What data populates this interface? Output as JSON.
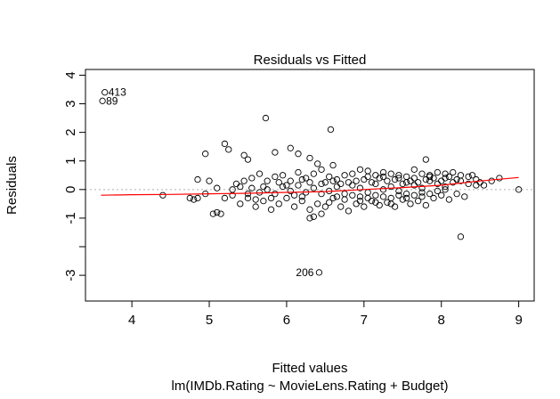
{
  "chart_data": {
    "type": "scatter",
    "title": "Residuals vs Fitted",
    "xlabel": "Fitted values",
    "ylabel": "Residuals",
    "subtitle": "lm(IMDb.Rating ~ MovieLens.Rating + Budget)",
    "xlim": [
      3.4,
      9.2
    ],
    "ylim": [
      -3.9,
      4.2
    ],
    "x_ticks": [
      4,
      5,
      6,
      7,
      8,
      9
    ],
    "y_ticks": [
      -3,
      -2,
      -1,
      0,
      1,
      2,
      3,
      4
    ],
    "y_tick_labels": [
      "-3",
      "",
      "-1",
      "0",
      "1",
      "2",
      "3",
      "4"
    ],
    "reference_line": {
      "y": 0,
      "style": "dotted",
      "color": "#b0b0b0"
    },
    "annotations": [
      {
        "label": "413",
        "x": 3.65,
        "y": 3.4
      },
      {
        "label": "89",
        "x": 3.62,
        "y": 3.1
      },
      {
        "label": "206",
        "x": 6.42,
        "y": -2.9
      }
    ],
    "smoother": {
      "color": "#ff0000",
      "x": [
        3.6,
        4.0,
        4.5,
        5.0,
        5.5,
        6.0,
        6.5,
        7.0,
        7.5,
        8.0,
        8.5,
        9.0
      ],
      "y": [
        -0.2,
        -0.18,
        -0.17,
        -0.15,
        -0.13,
        -0.1,
        -0.07,
        0.0,
        0.07,
        0.15,
        0.3,
        0.42
      ]
    },
    "series": [
      {
        "points": [
          [
            3.65,
            3.4
          ],
          [
            3.62,
            3.1
          ],
          [
            6.42,
            -2.9
          ],
          [
            8.25,
            -1.65
          ],
          [
            5.73,
            2.5
          ],
          [
            6.57,
            2.1
          ],
          [
            5.2,
            1.6
          ],
          [
            5.25,
            1.4
          ],
          [
            6.05,
            1.45
          ],
          [
            5.45,
            1.2
          ],
          [
            5.5,
            1.05
          ],
          [
            4.95,
            1.25
          ],
          [
            5.85,
            1.3
          ],
          [
            6.15,
            1.25
          ],
          [
            6.3,
            1.1
          ],
          [
            6.4,
            0.9
          ],
          [
            6.6,
            0.85
          ],
          [
            7.8,
            1.05
          ],
          [
            5.05,
            -0.85
          ],
          [
            5.15,
            -0.85
          ],
          [
            5.1,
            -0.8
          ],
          [
            6.3,
            -1.0
          ],
          [
            6.35,
            -0.95
          ],
          [
            6.45,
            -0.85
          ],
          [
            4.4,
            -0.2
          ],
          [
            4.75,
            -0.3
          ],
          [
            4.8,
            -0.35
          ],
          [
            4.85,
            -0.3
          ],
          [
            9.0,
            0.0
          ],
          [
            8.75,
            0.4
          ],
          [
            8.65,
            0.3
          ],
          [
            8.4,
            0.5
          ],
          [
            8.45,
            0.15
          ],
          [
            4.85,
            0.35
          ],
          [
            5.0,
            0.3
          ],
          [
            5.35,
            0.2
          ],
          [
            5.45,
            0.3
          ],
          [
            5.55,
            0.4
          ],
          [
            5.65,
            0.55
          ],
          [
            5.75,
            0.3
          ],
          [
            5.85,
            0.45
          ],
          [
            5.95,
            0.5
          ],
          [
            6.05,
            0.3
          ],
          [
            6.15,
            0.6
          ],
          [
            6.25,
            0.4
          ],
          [
            6.35,
            0.55
          ],
          [
            6.45,
            0.7
          ],
          [
            6.55,
            0.45
          ],
          [
            6.65,
            0.35
          ],
          [
            6.75,
            0.5
          ],
          [
            6.85,
            0.55
          ],
          [
            6.95,
            0.7
          ],
          [
            7.05,
            0.65
          ],
          [
            7.15,
            0.5
          ],
          [
            7.25,
            0.6
          ],
          [
            7.35,
            0.55
          ],
          [
            7.45,
            0.5
          ],
          [
            7.55,
            0.45
          ],
          [
            7.65,
            0.7
          ],
          [
            7.75,
            0.55
          ],
          [
            7.85,
            0.5
          ],
          [
            7.95,
            0.6
          ],
          [
            8.05,
            0.55
          ],
          [
            8.15,
            0.6
          ],
          [
            8.25,
            0.5
          ],
          [
            8.35,
            0.45
          ],
          [
            5.3,
            -0.2
          ],
          [
            5.4,
            -0.5
          ],
          [
            5.5,
            -0.3
          ],
          [
            5.6,
            -0.6
          ],
          [
            5.7,
            -0.4
          ],
          [
            5.8,
            -0.7
          ],
          [
            5.9,
            -0.5
          ],
          [
            6.0,
            -0.3
          ],
          [
            6.1,
            -0.6
          ],
          [
            6.2,
            -0.4
          ],
          [
            6.3,
            -0.7
          ],
          [
            6.4,
            -0.5
          ],
          [
            6.5,
            -0.6
          ],
          [
            6.6,
            -0.3
          ],
          [
            6.7,
            -0.6
          ],
          [
            6.8,
            -0.75
          ],
          [
            6.9,
            -0.5
          ],
          [
            7.0,
            -0.6
          ],
          [
            7.1,
            -0.4
          ],
          [
            7.2,
            -0.55
          ],
          [
            7.3,
            -0.45
          ],
          [
            7.4,
            -0.6
          ],
          [
            7.5,
            -0.35
          ],
          [
            7.6,
            -0.5
          ],
          [
            7.7,
            -0.4
          ],
          [
            7.8,
            -0.55
          ],
          [
            7.9,
            -0.3
          ],
          [
            8.0,
            -0.2
          ],
          [
            8.1,
            -0.35
          ],
          [
            8.2,
            -0.15
          ],
          [
            8.3,
            -0.25
          ],
          [
            5.55,
            0.05
          ],
          [
            5.65,
            -0.1
          ],
          [
            5.75,
            0.0
          ],
          [
            5.85,
            -0.15
          ],
          [
            5.95,
            0.1
          ],
          [
            6.05,
            -0.05
          ],
          [
            6.15,
            0.15
          ],
          [
            6.25,
            -0.1
          ],
          [
            6.35,
            0.05
          ],
          [
            6.45,
            0.2
          ],
          [
            6.55,
            -0.05
          ],
          [
            6.65,
            0.1
          ],
          [
            6.75,
            -0.15
          ],
          [
            6.85,
            0.15
          ],
          [
            6.95,
            0.05
          ],
          [
            7.05,
            -0.1
          ],
          [
            7.15,
            0.2
          ],
          [
            7.25,
            0.0
          ],
          [
            7.35,
            0.1
          ],
          [
            7.45,
            -0.05
          ],
          [
            7.55,
            0.25
          ],
          [
            7.65,
            0.15
          ],
          [
            7.75,
            0.05
          ],
          [
            7.85,
            0.3
          ],
          [
            7.95,
            0.2
          ],
          [
            8.05,
            0.1
          ],
          [
            8.15,
            0.25
          ],
          [
            8.25,
            0.3
          ],
          [
            8.35,
            0.2
          ],
          [
            8.45,
            0.35
          ],
          [
            6.9,
            0.3
          ],
          [
            7.0,
            0.35
          ],
          [
            7.1,
            0.25
          ],
          [
            7.2,
            0.4
          ],
          [
            7.3,
            0.3
          ],
          [
            7.4,
            0.35
          ],
          [
            7.5,
            0.2
          ],
          [
            7.6,
            0.3
          ],
          [
            7.7,
            0.25
          ],
          [
            7.8,
            0.35
          ],
          [
            7.9,
            0.4
          ],
          [
            8.0,
            0.3
          ],
          [
            8.1,
            0.45
          ],
          [
            8.2,
            0.35
          ],
          [
            6.95,
            -0.25
          ],
          [
            7.05,
            -0.3
          ],
          [
            7.15,
            -0.2
          ],
          [
            7.25,
            -0.25
          ],
          [
            7.35,
            -0.3
          ],
          [
            7.45,
            -0.2
          ],
          [
            7.55,
            -0.15
          ],
          [
            7.65,
            -0.2
          ],
          [
            7.75,
            -0.1
          ],
          [
            7.85,
            -0.15
          ],
          [
            7.95,
            -0.05
          ],
          [
            8.05,
            0.0
          ],
          [
            6.5,
            0.25
          ],
          [
            6.6,
            0.3
          ],
          [
            6.7,
            0.2
          ],
          [
            6.8,
            0.25
          ],
          [
            6.2,
            0.35
          ],
          [
            6.3,
            0.25
          ],
          [
            6.1,
            -0.2
          ],
          [
            6.2,
            -0.25
          ],
          [
            6.0,
            0.15
          ],
          [
            5.9,
            0.25
          ],
          [
            5.8,
            -0.3
          ],
          [
            5.7,
            0.1
          ],
          [
            5.6,
            -0.35
          ],
          [
            5.5,
            -0.15
          ],
          [
            5.4,
            0.1
          ],
          [
            5.3,
            0.0
          ],
          [
            5.2,
            -0.3
          ],
          [
            5.1,
            0.05
          ],
          [
            4.95,
            -0.15
          ],
          [
            6.55,
            -0.45
          ],
          [
            6.75,
            -0.35
          ],
          [
            6.95,
            -0.4
          ],
          [
            7.15,
            -0.45
          ],
          [
            7.35,
            -0.5
          ],
          [
            7.55,
            -0.3
          ],
          [
            7.75,
            -0.25
          ],
          [
            6.85,
            -0.2
          ],
          [
            7.05,
            0.45
          ],
          [
            7.25,
            0.45
          ],
          [
            7.45,
            0.4
          ],
          [
            7.65,
            0.4
          ],
          [
            7.85,
            0.45
          ],
          [
            8.05,
            0.4
          ],
          [
            8.5,
            0.25
          ],
          [
            8.55,
            0.15
          ],
          [
            6.45,
            -0.15
          ],
          [
            6.65,
            -0.25
          ]
        ]
      }
    ]
  }
}
